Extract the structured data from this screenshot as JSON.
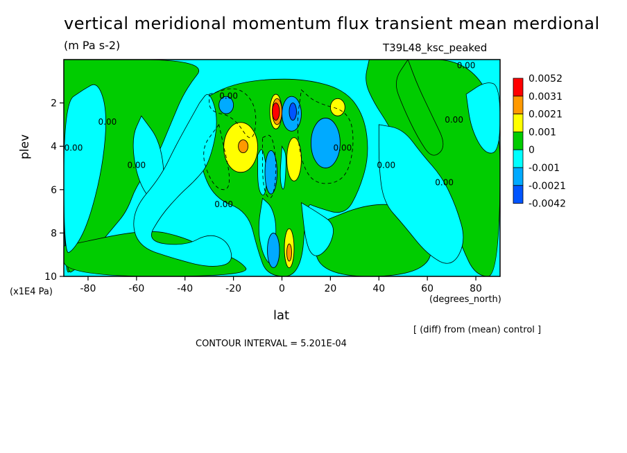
{
  "chart_data": {
    "type": "heatmap",
    "title": "vertical meridional momentum flux transient mean merdional",
    "units": "(m Pa s-2)",
    "run_label": "T39L48_ksc_peaked",
    "xlabel": "lat",
    "x_units": "(degrees_north)",
    "ylabel": "plev",
    "y_scale_note": "(x1E4 Pa)",
    "xlim": [
      -90,
      90
    ],
    "ylim": [
      10,
      0
    ],
    "x_ticks": [
      "-80",
      "-60",
      "-40",
      "-20",
      "0",
      "20",
      "40",
      "60",
      "80"
    ],
    "x_tick_values": [
      -80,
      -60,
      -40,
      -20,
      0,
      20,
      40,
      60,
      80
    ],
    "y_ticks": [
      "2",
      "4",
      "6",
      "8",
      "10"
    ],
    "y_tick_values": [
      2,
      4,
      6,
      8,
      10
    ],
    "contour_label": "0.00",
    "colorbar": {
      "levels": [
        "0.0052",
        "0.0031",
        "0.0021",
        "0.001",
        "0",
        "-0.001",
        "-0.0021",
        "-0.0042"
      ],
      "colors": [
        "#ff0000",
        "#ff9900",
        "#ffff00",
        "#00cc00",
        "#00ffff",
        "#00aaff",
        "#0055ff"
      ]
    },
    "colors": {
      "red": "#ff0000",
      "orange": "#ff9900",
      "yellow": "#ffff00",
      "green": "#00cc00",
      "cyan": "#00ffff",
      "lightblue": "#00aaff",
      "blue": "#0055ff"
    },
    "regions": [
      {
        "color": "yellow",
        "lat": [
          -24,
          -10
        ],
        "plev": [
          2.9,
          5.2
        ]
      },
      {
        "color": "orange",
        "lat": [
          -18,
          -14
        ],
        "plev": [
          3.7,
          4.3
        ]
      },
      {
        "color": "yellow",
        "lat": [
          2,
          8
        ],
        "plev": [
          3.6,
          5.6
        ]
      },
      {
        "color": "yellow",
        "lat": [
          -5,
          0
        ],
        "plev": [
          1.6,
          3.2
        ]
      },
      {
        "color": "orange",
        "lat": [
          -4,
          0
        ],
        "plev": [
          1.8,
          3.0
        ]
      },
      {
        "color": "red",
        "lat": [
          -4,
          -1
        ],
        "plev": [
          2.0,
          2.8
        ]
      },
      {
        "color": "yellow",
        "lat": [
          20,
          26
        ],
        "plev": [
          1.8,
          2.6
        ]
      },
      {
        "color": "yellow",
        "lat": [
          1,
          5
        ],
        "plev": [
          7.8,
          9.6
        ]
      },
      {
        "color": "orange",
        "lat": [
          2,
          4
        ],
        "plev": [
          8.5,
          9.3
        ]
      },
      {
        "color": "lightblue",
        "lat": [
          12,
          24
        ],
        "plev": [
          2.7,
          5.0
        ]
      },
      {
        "color": "lightblue",
        "lat": [
          0,
          8
        ],
        "plev": [
          1.7,
          3.3
        ]
      },
      {
        "color": "blue",
        "lat": [
          3,
          6
        ],
        "plev": [
          2.0,
          2.8
        ]
      },
      {
        "color": "lightblue",
        "lat": [
          -26,
          -20
        ],
        "plev": [
          1.7,
          2.5
        ]
      },
      {
        "color": "lightblue",
        "lat": [
          -7,
          -2
        ],
        "plev": [
          4.2,
          6.2
        ]
      },
      {
        "color": "lightblue",
        "lat": [
          -6,
          -1
        ],
        "plev": [
          8.0,
          9.6
        ]
      }
    ],
    "contour_labels": [
      {
        "text": "0.00",
        "lat": -72,
        "plev": 3.0
      },
      {
        "text": "0.00",
        "lat": -86,
        "plev": 4.2
      },
      {
        "text": "0.00",
        "lat": -60,
        "plev": 5.0
      },
      {
        "text": "0.00",
        "lat": -22,
        "plev": 1.8
      },
      {
        "text": "0.00",
        "lat": -24,
        "plev": 6.8
      },
      {
        "text": "0.00",
        "lat": 25,
        "plev": 4.2
      },
      {
        "text": "0.00",
        "lat": 43,
        "plev": 5.0
      },
      {
        "text": "0.00",
        "lat": 67,
        "plev": 5.8
      },
      {
        "text": "0.00",
        "lat": 71,
        "plev": 2.9
      },
      {
        "text": "0.00",
        "lat": 76,
        "plev": 0.4
      }
    ]
  },
  "labels": {
    "scale": "(x1E4 Pa)",
    "x_units": "(degrees_north)",
    "note": "[ (diff) from (mean) control ]",
    "contour_interval": "CONTOUR INTERVAL = 5.201E-04"
  }
}
